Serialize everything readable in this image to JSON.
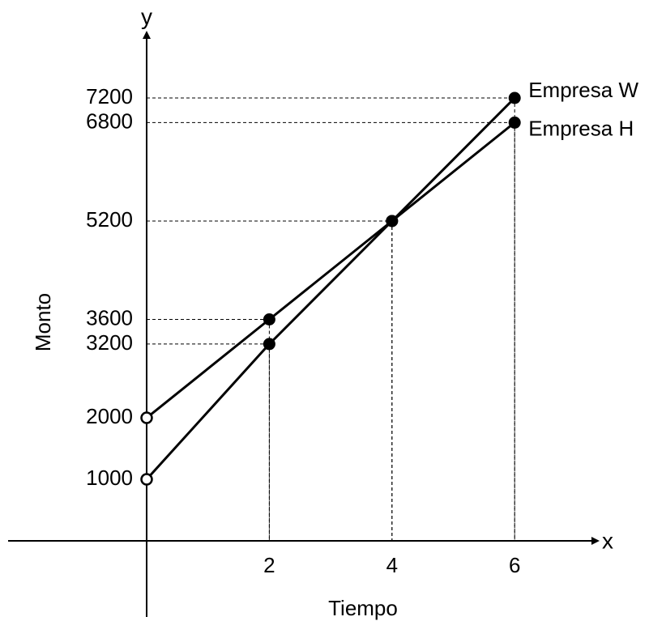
{
  "chart_data": {
    "type": "line",
    "axis_x_letter": "x",
    "axis_y_letter": "y",
    "xlabel": "Tiempo",
    "ylabel": "Monto",
    "x_ticks": [
      2,
      4,
      6
    ],
    "y_ticks": [
      1000,
      2000,
      3200,
      3600,
      5200,
      6800,
      7200
    ],
    "grid": false,
    "reference_lines": "dashed guides from each marked point to both axes",
    "series": [
      {
        "name": "Empresa W",
        "points": [
          {
            "x": 0,
            "y": 1000,
            "marker": "open"
          },
          {
            "x": 2,
            "y": 3200,
            "marker": "filled"
          },
          {
            "x": 4,
            "y": 5200,
            "marker": "filled"
          },
          {
            "x": 6,
            "y": 7200,
            "marker": "filled"
          }
        ]
      },
      {
        "name": "Empresa H",
        "points": [
          {
            "x": 0,
            "y": 2000,
            "marker": "open"
          },
          {
            "x": 2,
            "y": 3600,
            "marker": "filled"
          },
          {
            "x": 4,
            "y": 5200,
            "marker": "filled"
          },
          {
            "x": 6,
            "y": 6800,
            "marker": "filled"
          }
        ]
      }
    ],
    "colors": {
      "line": "#000000",
      "guide": "#000000",
      "background": "#ffffff"
    }
  }
}
